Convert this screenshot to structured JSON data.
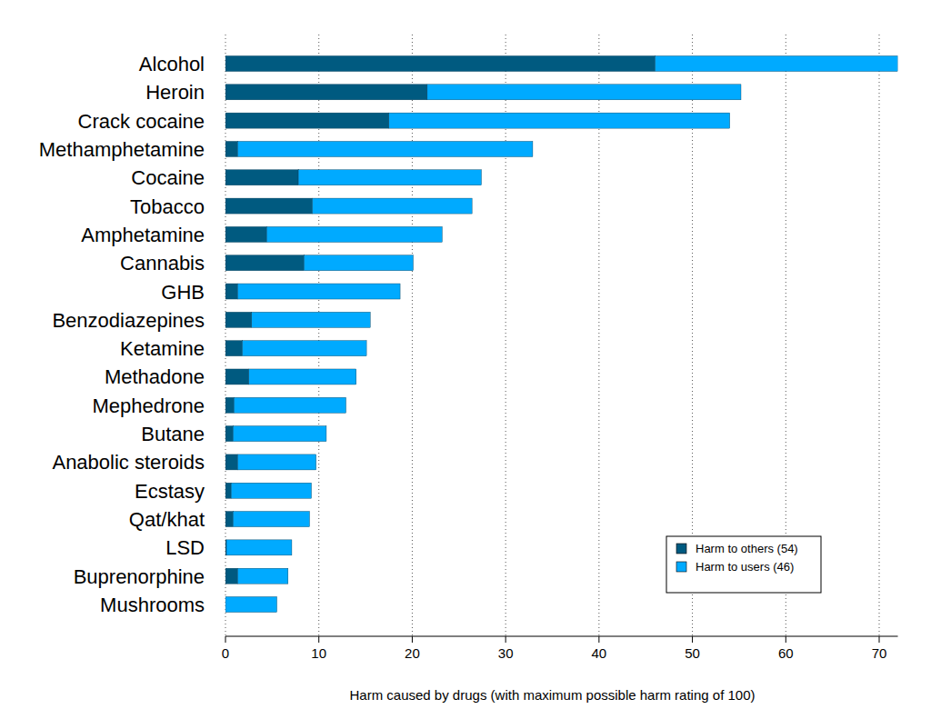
{
  "chart_data": {
    "type": "bar",
    "orientation": "horizontal",
    "stacked": true,
    "x_label": "Harm caused by drugs (with maximum possible harm rating of 100)",
    "categories": [
      "Alcohol",
      "Heroin",
      "Crack cocaine",
      "Methamphetamine",
      "Cocaine",
      "Tobacco",
      "Amphetamine",
      "Cannabis",
      "GHB",
      "Benzodiazepines",
      "Ketamine",
      "Methadone",
      "Mephedrone",
      "Butane",
      "Anabolic steroids",
      "Ecstasy",
      "Qat/khat",
      "LSD",
      "Buprenorphine",
      "Mushrooms"
    ],
    "series": [
      {
        "name": "Harm to others (54)",
        "color": "#005a80",
        "values": [
          46.0,
          21.6,
          17.5,
          1.3,
          7.8,
          9.3,
          4.4,
          8.4,
          1.3,
          2.8,
          1.8,
          2.5,
          0.9,
          0.8,
          1.3,
          0.6,
          0.8,
          0.1,
          1.3,
          0.0
        ]
      },
      {
        "name": "Harm to users (46)",
        "color": "#00aaff",
        "values": [
          26.0,
          33.6,
          36.5,
          31.6,
          19.6,
          17.1,
          18.8,
          11.7,
          17.4,
          12.7,
          13.3,
          11.5,
          12.0,
          10.0,
          8.4,
          8.6,
          8.2,
          7.0,
          5.4,
          5.5
        ]
      }
    ],
    "xlim": [
      0,
      72
    ],
    "xticks": [
      0,
      10,
      20,
      30,
      40,
      50,
      60,
      70
    ],
    "grid": true,
    "legend": "lower right"
  }
}
